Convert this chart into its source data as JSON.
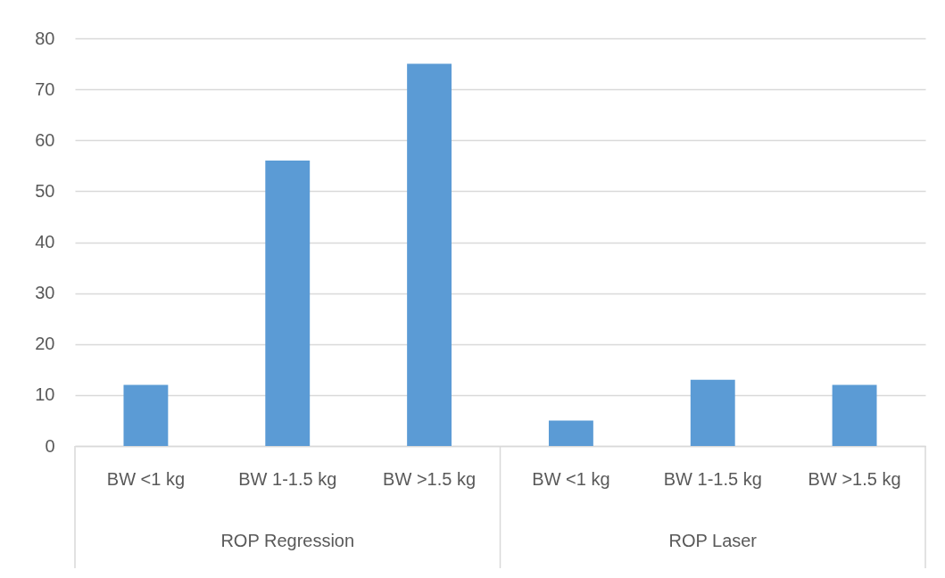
{
  "chart_data": {
    "type": "bar",
    "categories": [
      "BW <1 kg",
      "BW 1-1.5 kg",
      "BW >1.5 kg",
      "BW <1 kg",
      "BW 1-1.5 kg",
      "BW >1.5 kg"
    ],
    "values": [
      12,
      56,
      75,
      5,
      13,
      12
    ],
    "color": "#5b9bd5",
    "ylim": [
      0,
      80
    ],
    "yticks": [
      0,
      10,
      20,
      30,
      40,
      50,
      60,
      70,
      80
    ],
    "grid": "y",
    "annotations": [
      "ROP Regression",
      "ROP Laser"
    ]
  }
}
